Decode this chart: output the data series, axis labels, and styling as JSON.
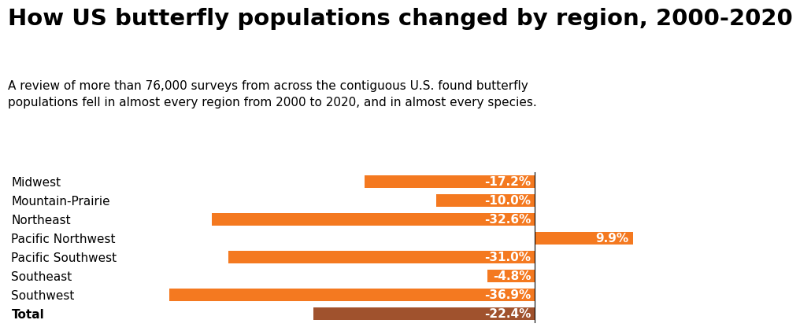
{
  "title": "How US butterfly populations changed by region, 2000-2020",
  "subtitle": "A review of more than 76,000 surveys from across the contiguous U.S. found butterfly\npopulations fell in almost every region from 2000 to 2020, and in almost every species.",
  "categories": [
    "Midwest",
    "Mountain-Prairie",
    "Northeast",
    "Pacific Northwest",
    "Pacific Southwest",
    "Southeast",
    "Southwest",
    "Total"
  ],
  "values": [
    -17.2,
    -10.0,
    -32.6,
    9.9,
    -31.0,
    -4.8,
    -36.9,
    -22.4
  ],
  "bar_colors": [
    "#F47920",
    "#F47920",
    "#F47920",
    "#F47920",
    "#F47920",
    "#F47920",
    "#F47920",
    "#A0522D"
  ],
  "label_format": [
    "-17.2%",
    "-10.0%",
    "-32.6%",
    "9.9%",
    "-31.0%",
    "-4.8%",
    "-36.9%",
    "-22.4%"
  ],
  "xlim": [
    -42,
    16
  ],
  "background_color": "#ffffff",
  "title_fontsize": 21,
  "subtitle_fontsize": 11,
  "label_fontsize": 11,
  "category_fontsize": 11,
  "bar_height": 0.65
}
